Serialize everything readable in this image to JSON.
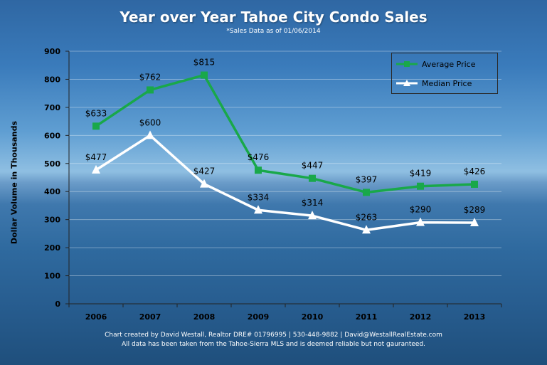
{
  "chart_data": {
    "type": "line",
    "title": "Year over Year Tahoe City Condo Sales",
    "subtitle": "*Sales Data as  of 01/06/2014",
    "ylabel": "Dollar Volume in Thousands",
    "xlabel": "",
    "categories": [
      "2006",
      "2007",
      "2008",
      "2009",
      "2010",
      "2011",
      "2012",
      "2013"
    ],
    "ylim": [
      0,
      900
    ],
    "yticks": [
      "0",
      "100",
      "200",
      "300",
      "400",
      "500",
      "600",
      "700",
      "800",
      "900"
    ],
    "grid": true,
    "legend_position": "top-right",
    "series": [
      {
        "name": "Average Price",
        "color": "#19a84a",
        "marker": "square",
        "values": [
          633,
          762,
          815,
          476,
          447,
          397,
          419,
          426
        ],
        "labels": [
          "$633",
          "$762",
          "$815",
          "$476",
          "$447",
          "$397",
          "$419",
          "$426"
        ]
      },
      {
        "name": "Median Price",
        "color": "#ffffff",
        "marker": "triangle",
        "values": [
          477,
          600,
          427,
          334,
          314,
          263,
          290,
          289
        ],
        "labels": [
          "$477",
          "$600",
          "$427",
          "$334",
          "$314",
          "$263",
          "$290",
          "$289"
        ]
      }
    ]
  },
  "footer": {
    "line1": "Chart created by David Westall, Realtor DRE# 01796995 | 530-448-9882 | David@WestallRealEstate.com",
    "line2": "All data has been taken from the Tahoe-Sierra MLS and is deemed reliable but not gauranteed."
  }
}
